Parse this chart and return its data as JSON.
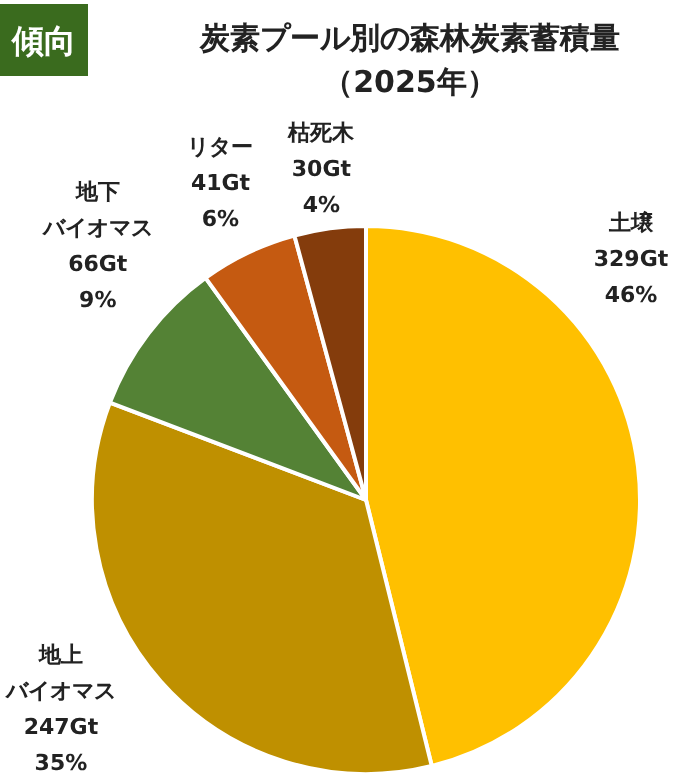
{
  "chart_data": {
    "type": "pie",
    "title": "炭素プール別の森林炭素蓄積量",
    "subtitle": "（2025年）",
    "annotations": [
      "傾向"
    ],
    "categories": [
      "土壌",
      "地上バイオマス",
      "地下バイオマス",
      "リター",
      "枯死木"
    ],
    "values": [
      329,
      247,
      66,
      41,
      30
    ],
    "value_labels": [
      "329Gt\n46%",
      "247Gt\n35%",
      "66Gt\n9%",
      "41Gt\n6%",
      "30Gt\n4%"
    ],
    "colors": [
      "#ffc000",
      "#bf9000",
      "#548235",
      "#c55a11",
      "#843c0c"
    ]
  }
}
